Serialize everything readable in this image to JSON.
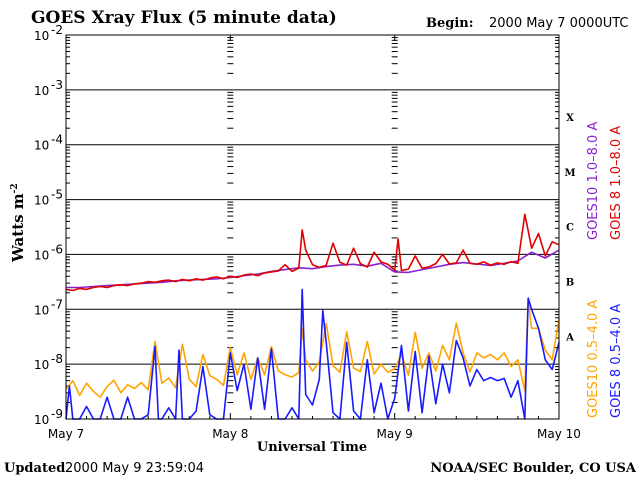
{
  "header": {
    "title": "GOES Xray Flux (5 minute data)",
    "begin_label": "Begin:",
    "begin_value": "2000 May 7 0000UTC"
  },
  "footer": {
    "updated_label": "Updated",
    "updated_value": "2000 May  9 23:59:04",
    "credit": "NOAA/SEC Boulder, CO USA"
  },
  "chart_data": {
    "type": "line",
    "title": "GOES Xray Flux (5 minute data)",
    "xlabel": "Universal Time",
    "ylabel": "Watts m",
    "ylabel_superscript": "-2",
    "y_scale": "log",
    "ylim": [
      1e-09,
      0.01
    ],
    "xlim": [
      0,
      72
    ],
    "x_unit": "hours since 2000 May 7 00:00 UTC",
    "x_ticks": [
      {
        "x": 0,
        "label": "May 7"
      },
      {
        "x": 24,
        "label": "May 8"
      },
      {
        "x": 48,
        "label": "May 9"
      },
      {
        "x": 72,
        "label": "May 10"
      }
    ],
    "y_ticks": [
      {
        "value": 0.01,
        "exp": "-2"
      },
      {
        "value": 0.001,
        "exp": "-3"
      },
      {
        "value": 0.0001,
        "exp": "-4"
      },
      {
        "value": 1e-05,
        "exp": "-5"
      },
      {
        "value": 1e-06,
        "exp": "-6"
      },
      {
        "value": 1e-07,
        "exp": "-7"
      },
      {
        "value": 1e-08,
        "exp": "-8"
      },
      {
        "value": 1e-09,
        "exp": "-9"
      }
    ],
    "tick_base": "10",
    "flare_classes": [
      {
        "label": "X",
        "value": 0.00032
      },
      {
        "label": "M",
        "value": 3.2e-05
      },
      {
        "label": "C",
        "value": 3.2e-06
      },
      {
        "label": "B",
        "value": 3.2e-07
      },
      {
        "label": "A",
        "value": 3.2e-08
      }
    ],
    "grid": true,
    "legend_position": "right, vertical",
    "series": [
      {
        "name": "GOES10 1.0-8.0 A",
        "legend": "GOES10  1.0–8.0  A",
        "color": "#8822cc",
        "points": [
          [
            0,
            2.5e-07
          ],
          [
            2,
            2.5e-07
          ],
          [
            4,
            2.6e-07
          ],
          [
            6,
            2.7e-07
          ],
          [
            8,
            2.8e-07
          ],
          [
            10,
            2.9e-07
          ],
          [
            12,
            3e-07
          ],
          [
            14,
            3.1e-07
          ],
          [
            16,
            3.3e-07
          ],
          [
            18,
            3.4e-07
          ],
          [
            20,
            3.5e-07
          ],
          [
            22,
            3.6e-07
          ],
          [
            24,
            3.8e-07
          ],
          [
            26,
            4.1e-07
          ],
          [
            28,
            4.4e-07
          ],
          [
            30,
            4.9e-07
          ],
          [
            32,
            5.3e-07
          ],
          [
            34,
            5.7e-07
          ],
          [
            36,
            5.5e-07
          ],
          [
            38,
            6e-07
          ],
          [
            40,
            6.4e-07
          ],
          [
            42,
            6.6e-07
          ],
          [
            44,
            6.1e-07
          ],
          [
            46,
            6.9e-07
          ],
          [
            48,
            4.8e-07
          ],
          [
            50,
            4.7e-07
          ],
          [
            52,
            5.3e-07
          ],
          [
            54,
            5.9e-07
          ],
          [
            56,
            6.6e-07
          ],
          [
            58,
            7.1e-07
          ],
          [
            60,
            6.7e-07
          ],
          [
            62,
            6.3e-07
          ],
          [
            64,
            6.9e-07
          ],
          [
            66,
            7.6e-07
          ],
          [
            68,
            1.1e-06
          ],
          [
            70,
            8.6e-07
          ],
          [
            72,
            1.2e-06
          ]
        ]
      },
      {
        "name": "GOES 8 1.0-8.0 A",
        "legend": "GOES 8  1.0–8.0  A",
        "color": "#e00000",
        "points": [
          [
            0,
            2.3e-07
          ],
          [
            1,
            2.2e-07
          ],
          [
            2,
            2.4e-07
          ],
          [
            3,
            2.3e-07
          ],
          [
            4,
            2.5e-07
          ],
          [
            5,
            2.6e-07
          ],
          [
            6,
            2.5e-07
          ],
          [
            7,
            2.7e-07
          ],
          [
            8,
            2.8e-07
          ],
          [
            9,
            2.7e-07
          ],
          [
            10,
            2.9e-07
          ],
          [
            11,
            3e-07
          ],
          [
            12,
            3.2e-07
          ],
          [
            13,
            3.1e-07
          ],
          [
            14,
            3.3e-07
          ],
          [
            15,
            3.4e-07
          ],
          [
            16,
            3.2e-07
          ],
          [
            17,
            3.5e-07
          ],
          [
            18,
            3.3e-07
          ],
          [
            19,
            3.6e-07
          ],
          [
            20,
            3.4e-07
          ],
          [
            21,
            3.7e-07
          ],
          [
            22,
            3.9e-07
          ],
          [
            23,
            3.6e-07
          ],
          [
            24,
            4e-07
          ],
          [
            25,
            3.8e-07
          ],
          [
            26,
            4.2e-07
          ],
          [
            27,
            4.4e-07
          ],
          [
            28,
            4.1e-07
          ],
          [
            29,
            4.6e-07
          ],
          [
            30,
            4.8e-07
          ],
          [
            31,
            5e-07
          ],
          [
            32,
            6.5e-07
          ],
          [
            33,
            4.9e-07
          ],
          [
            34,
            5.6e-07
          ],
          [
            34.5,
            2.8e-06
          ],
          [
            35,
            1.2e-06
          ],
          [
            36,
            6.5e-07
          ],
          [
            37,
            5.8e-07
          ],
          [
            38,
            6.3e-07
          ],
          [
            39,
            1.6e-06
          ],
          [
            40,
            7.2e-07
          ],
          [
            41,
            6.4e-07
          ],
          [
            42,
            1.3e-06
          ],
          [
            43,
            6.8e-07
          ],
          [
            44,
            5.9e-07
          ],
          [
            45,
            1.1e-06
          ],
          [
            46,
            7.3e-07
          ],
          [
            47,
            6.6e-07
          ],
          [
            48,
            5.2e-07
          ],
          [
            48.5,
            1.9e-06
          ],
          [
            49,
            5.1e-07
          ],
          [
            50,
            5.4e-07
          ],
          [
            51,
            9.4e-07
          ],
          [
            52,
            5.6e-07
          ],
          [
            53,
            5.9e-07
          ],
          [
            54,
            6.8e-07
          ],
          [
            55,
            1e-06
          ],
          [
            56,
            6.7e-07
          ],
          [
            57,
            7e-07
          ],
          [
            58,
            1.2e-06
          ],
          [
            59,
            6.9e-07
          ],
          [
            60,
            6.6e-07
          ],
          [
            61,
            7.3e-07
          ],
          [
            62,
            6.4e-07
          ],
          [
            63,
            7e-07
          ],
          [
            64,
            6.6e-07
          ],
          [
            65,
            7.4e-07
          ],
          [
            66,
            6.9e-07
          ],
          [
            67,
            5.4e-06
          ],
          [
            67.5,
            2.7e-06
          ],
          [
            68,
            1.3e-06
          ],
          [
            69,
            2.4e-06
          ],
          [
            70,
            9.4e-07
          ],
          [
            71,
            1.7e-06
          ],
          [
            72,
            1.5e-06
          ]
        ]
      },
      {
        "name": "GOES10 0.5-4.0 A",
        "legend": "GOES10  0.5–4.0  A",
        "color": "#ffa500",
        "points": [
          [
            0,
            3.5e-09
          ],
          [
            1,
            5e-09
          ],
          [
            2,
            2.7e-09
          ],
          [
            3,
            4.5e-09
          ],
          [
            4,
            3.2e-09
          ],
          [
            5,
            2.5e-09
          ],
          [
            6,
            3.9e-09
          ],
          [
            7,
            5.1e-09
          ],
          [
            8,
            3e-09
          ],
          [
            9,
            4.2e-09
          ],
          [
            10,
            3.6e-09
          ],
          [
            11,
            4.6e-09
          ],
          [
            12,
            3.4e-09
          ],
          [
            13,
            2.6e-08
          ],
          [
            14,
            4.5e-09
          ],
          [
            15,
            5.6e-09
          ],
          [
            16,
            3.7e-09
          ],
          [
            17,
            2.3e-08
          ],
          [
            18,
            5.3e-09
          ],
          [
            19,
            3.9e-09
          ],
          [
            20,
            1.5e-08
          ],
          [
            21,
            6.2e-09
          ],
          [
            22,
            5.3e-09
          ],
          [
            23,
            4.1e-09
          ],
          [
            24,
            2e-08
          ],
          [
            25,
            6.4e-09
          ],
          [
            26,
            1.6e-08
          ],
          [
            27,
            5.3e-09
          ],
          [
            28,
            1.3e-08
          ],
          [
            29,
            6.4e-09
          ],
          [
            30,
            2.1e-08
          ],
          [
            31,
            7.6e-09
          ],
          [
            32,
            6.4e-09
          ],
          [
            33,
            5.8e-09
          ],
          [
            34,
            7e-09
          ],
          [
            34.5,
            4.5e-08
          ],
          [
            35,
            1.2e-08
          ],
          [
            36,
            7.5e-09
          ],
          [
            37,
            1.1e-08
          ],
          [
            38,
            5.5e-08
          ],
          [
            39,
            9.4e-09
          ],
          [
            40,
            7.1e-09
          ],
          [
            41,
            3.9e-08
          ],
          [
            42,
            8.5e-09
          ],
          [
            43,
            7.3e-09
          ],
          [
            44,
            2.6e-08
          ],
          [
            45,
            6.6e-09
          ],
          [
            46,
            1e-08
          ],
          [
            47,
            7.1e-09
          ],
          [
            48,
            8.2e-09
          ],
          [
            49,
            1.5e-08
          ],
          [
            50,
            6.3e-09
          ],
          [
            51,
            3.8e-08
          ],
          [
            52,
            8.4e-09
          ],
          [
            53,
            1.6e-08
          ],
          [
            54,
            7.5e-09
          ],
          [
            55,
            2.2e-08
          ],
          [
            56,
            1.2e-08
          ],
          [
            57,
            5.6e-08
          ],
          [
            58,
            1.6e-08
          ],
          [
            59,
            7.2e-09
          ],
          [
            60,
            1.6e-08
          ],
          [
            61,
            1.3e-08
          ],
          [
            62,
            1.5e-08
          ],
          [
            63,
            1.2e-08
          ],
          [
            64,
            1.6e-08
          ],
          [
            65,
            9.1e-09
          ],
          [
            66,
            1.2e-08
          ],
          [
            67,
            3.3e-09
          ],
          [
            67.5,
            1.5e-07
          ],
          [
            68,
            4.5e-08
          ],
          [
            69,
            4.5e-08
          ],
          [
            70,
            1.8e-08
          ],
          [
            71,
            1.2e-08
          ],
          [
            72,
            6.5e-08
          ]
        ]
      },
      {
        "name": "GOES 8 0.5-4.0 A",
        "legend": "GOES 8  0.5–4.0  A",
        "color": "#1a1aff",
        "points": [
          [
            0,
            1e-09
          ],
          [
            0.5,
            4e-09
          ],
          [
            1,
            1e-09
          ],
          [
            2,
            1e-09
          ],
          [
            3,
            1.7e-09
          ],
          [
            4,
            1e-09
          ],
          [
            5,
            1e-09
          ],
          [
            6,
            2.5e-09
          ],
          [
            7,
            1e-09
          ],
          [
            8,
            1e-09
          ],
          [
            9,
            2.5e-09
          ],
          [
            10,
            1e-09
          ],
          [
            11,
            1e-09
          ],
          [
            12,
            1.2e-09
          ],
          [
            13,
            2.1e-08
          ],
          [
            13.5,
            1e-09
          ],
          [
            14,
            1e-09
          ],
          [
            15,
            1.6e-09
          ],
          [
            16,
            1e-09
          ],
          [
            16.5,
            1.8e-08
          ],
          [
            17,
            1e-09
          ],
          [
            18,
            1e-09
          ],
          [
            19,
            1.4e-09
          ],
          [
            20,
            9e-09
          ],
          [
            21,
            1.2e-09
          ],
          [
            22,
            1e-09
          ],
          [
            23,
            1e-09
          ],
          [
            24,
            1.6e-08
          ],
          [
            25,
            3.3e-09
          ],
          [
            26,
            1e-08
          ],
          [
            27,
            1.5e-09
          ],
          [
            28,
            1.3e-08
          ],
          [
            29,
            1.5e-09
          ],
          [
            30,
            1.9e-08
          ],
          [
            31,
            1e-09
          ],
          [
            32,
            1e-09
          ],
          [
            33,
            1.6e-09
          ],
          [
            34,
            1e-09
          ],
          [
            34.5,
            2.3e-07
          ],
          [
            35,
            2.8e-09
          ],
          [
            36,
            1.8e-09
          ],
          [
            37,
            5.3e-09
          ],
          [
            37.5,
            9.5e-08
          ],
          [
            38,
            2.5e-08
          ],
          [
            39,
            1.3e-09
          ],
          [
            40,
            1e-09
          ],
          [
            41,
            2.5e-08
          ],
          [
            42,
            1.4e-09
          ],
          [
            43,
            1e-09
          ],
          [
            44,
            1.2e-08
          ],
          [
            45,
            1.3e-09
          ],
          [
            46,
            4.5e-09
          ],
          [
            47,
            1e-09
          ],
          [
            48,
            2.4e-09
          ],
          [
            49,
            2.2e-08
          ],
          [
            50,
            1.4e-09
          ],
          [
            51,
            1.7e-08
          ],
          [
            52,
            1.3e-09
          ],
          [
            53,
            1.4e-08
          ],
          [
            54,
            1.9e-09
          ],
          [
            55,
            1e-08
          ],
          [
            56,
            3e-09
          ],
          [
            57,
            2.7e-08
          ],
          [
            58,
            1.3e-08
          ],
          [
            59,
            4e-09
          ],
          [
            60,
            8e-09
          ],
          [
            61,
            5e-09
          ],
          [
            62,
            5.7e-09
          ],
          [
            63,
            5e-09
          ],
          [
            64,
            5.5e-09
          ],
          [
            65,
            2.5e-09
          ],
          [
            66,
            5e-09
          ],
          [
            67,
            1e-09
          ],
          [
            67.5,
            1.6e-07
          ],
          [
            68,
            1e-07
          ],
          [
            69,
            4.5e-08
          ],
          [
            70,
            1.2e-08
          ],
          [
            71,
            8e-09
          ],
          [
            72,
            2.5e-08
          ]
        ]
      }
    ]
  }
}
